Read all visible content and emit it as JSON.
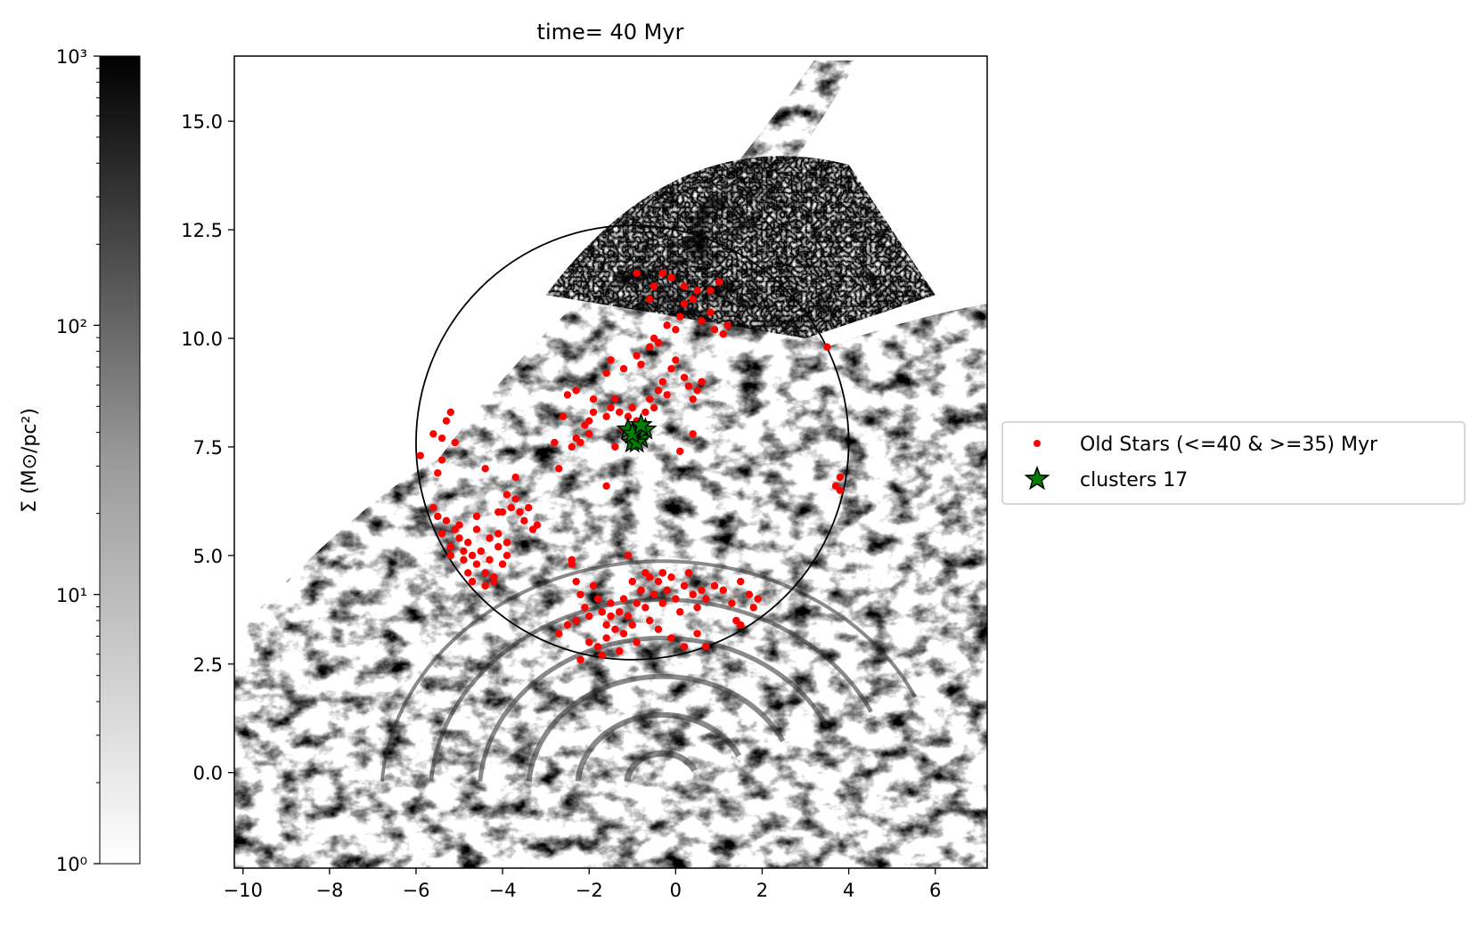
{
  "chart_data": {
    "type": "scatter",
    "title": "time= 40 Myr",
    "xlabel": "",
    "ylabel": "",
    "xlim": [
      -10.2,
      7.2
    ],
    "ylim": [
      -2.2,
      16.5
    ],
    "x_ticks": [
      -10,
      -8,
      -6,
      -4,
      -2,
      0,
      2,
      4,
      6
    ],
    "x_tick_labels": [
      "−10",
      "−8",
      "−6",
      "−4",
      "−2",
      "0",
      "2",
      "4",
      "6"
    ],
    "y_ticks": [
      0.0,
      2.5,
      5.0,
      7.5,
      10.0,
      12.5,
      15.0
    ],
    "y_tick_labels": [
      "0.0",
      "2.5",
      "5.0",
      "7.5",
      "10.0",
      "12.5",
      "15.0"
    ],
    "grid": false,
    "legend_placement": "right-outside",
    "background": "gas surface density map (greyscale, log scale)",
    "circle": {
      "center": [
        -1.0,
        7.6
      ],
      "radius": 5.0
    },
    "colorbar": {
      "label": "Σ (M⊙/pc²)",
      "scale": "log",
      "range": [
        1,
        1000
      ],
      "tick_labels": [
        "10⁰",
        "10¹",
        "10²",
        "10³"
      ],
      "colormap": "Greys"
    },
    "series": [
      {
        "name": "Old Stars (<=40 & >=35) Myr",
        "marker": "circle",
        "color": "#ff0000",
        "points": [
          [
            -5.9,
            7.3
          ],
          [
            -5.6,
            7.8
          ],
          [
            -5.4,
            7.7
          ],
          [
            -5.3,
            8.1
          ],
          [
            -5.2,
            8.3
          ],
          [
            -5.1,
            7.6
          ],
          [
            -5.4,
            7.2
          ],
          [
            -5.5,
            6.9
          ],
          [
            -5.6,
            6.1
          ],
          [
            -5.5,
            5.9
          ],
          [
            -5.3,
            5.8
          ],
          [
            -5.4,
            5.5
          ],
          [
            -5.1,
            5.6
          ],
          [
            -5.2,
            5.2
          ],
          [
            -5.0,
            5.4
          ],
          [
            -4.9,
            5.1
          ],
          [
            -4.8,
            5.3
          ],
          [
            -4.7,
            5.0
          ],
          [
            -4.6,
            4.8
          ],
          [
            -4.5,
            5.1
          ],
          [
            -4.4,
            4.6
          ],
          [
            -4.3,
            4.9
          ],
          [
            -4.2,
            4.5
          ],
          [
            -4.1,
            5.2
          ],
          [
            -4.0,
            4.8
          ],
          [
            -4.3,
            5.4
          ],
          [
            -4.6,
            5.6
          ],
          [
            -4.9,
            4.9
          ],
          [
            -5.0,
            5.7
          ],
          [
            -4.8,
            4.6
          ],
          [
            -4.4,
            4.3
          ],
          [
            -4.2,
            4.4
          ],
          [
            -4.7,
            4.4
          ],
          [
            -5.2,
            5.0
          ],
          [
            -4.1,
            5.5
          ],
          [
            -3.9,
            5.3
          ],
          [
            -4.0,
            6.0
          ],
          [
            -3.8,
            6.1
          ],
          [
            -3.7,
            6.3
          ],
          [
            -3.6,
            6.0
          ],
          [
            -3.5,
            5.8
          ],
          [
            -3.4,
            6.1
          ],
          [
            -3.3,
            5.6
          ],
          [
            -3.2,
            5.7
          ],
          [
            -3.9,
            6.4
          ],
          [
            -3.7,
            6.8
          ],
          [
            -4.1,
            6.0
          ],
          [
            -4.4,
            7.0
          ],
          [
            -3.9,
            5.0
          ],
          [
            -4.6,
            5.9
          ],
          [
            -2.5,
            8.7
          ],
          [
            -2.3,
            8.8
          ],
          [
            -2.6,
            8.2
          ],
          [
            -2.8,
            7.6
          ],
          [
            -2.4,
            7.5
          ],
          [
            -2.3,
            7.7
          ],
          [
            -2.2,
            7.6
          ],
          [
            -2.7,
            7.0
          ],
          [
            -2.0,
            7.8
          ],
          [
            -2.1,
            8.0
          ],
          [
            -1.9,
            8.3
          ],
          [
            -1.6,
            8.2
          ],
          [
            -1.5,
            8.4
          ],
          [
            -1.4,
            8.6
          ],
          [
            -1.3,
            8.3
          ],
          [
            -1.2,
            7.9
          ],
          [
            -1.1,
            8.2
          ],
          [
            -1.0,
            8.4
          ],
          [
            -0.9,
            8.1
          ],
          [
            -0.7,
            8.3
          ],
          [
            -0.6,
            8.6
          ],
          [
            -0.5,
            8.4
          ],
          [
            -0.4,
            8.8
          ],
          [
            -0.3,
            9.0
          ],
          [
            -0.2,
            8.7
          ],
          [
            -0.1,
            9.3
          ],
          [
            0.0,
            9.5
          ],
          [
            0.2,
            9.1
          ],
          [
            0.3,
            8.9
          ],
          [
            0.4,
            8.6
          ],
          [
            0.5,
            8.8
          ],
          [
            0.6,
            9.0
          ],
          [
            0.4,
            7.8
          ],
          [
            0.1,
            7.4
          ],
          [
            -1.2,
            9.3
          ],
          [
            -0.9,
            9.6
          ],
          [
            -0.8,
            9.4
          ],
          [
            -0.6,
            9.8
          ],
          [
            -0.5,
            10.0
          ],
          [
            -0.4,
            9.9
          ],
          [
            -0.2,
            10.3
          ],
          [
            0.0,
            10.2
          ],
          [
            0.1,
            10.5
          ],
          [
            0.2,
            10.8
          ],
          [
            0.4,
            10.9
          ],
          [
            0.6,
            10.4
          ],
          [
            0.8,
            10.6
          ],
          [
            0.9,
            10.2
          ],
          [
            1.1,
            10.1
          ],
          [
            1.2,
            10.3
          ],
          [
            0.5,
            11.1
          ],
          [
            0.2,
            11.2
          ],
          [
            -0.1,
            11.4
          ],
          [
            -0.3,
            11.5
          ],
          [
            -0.5,
            11.2
          ],
          [
            -0.9,
            11.5
          ],
          [
            -0.6,
            10.9
          ],
          [
            1.0,
            11.3
          ],
          [
            0.8,
            11.1
          ],
          [
            -1.6,
            9.2
          ],
          [
            -1.5,
            9.5
          ],
          [
            -1.9,
            8.6
          ],
          [
            -2.0,
            8.1
          ],
          [
            -1.6,
            6.6
          ],
          [
            -1.4,
            7.5
          ],
          [
            3.5,
            9.8
          ],
          [
            3.8,
            6.8
          ],
          [
            3.7,
            6.6
          ],
          [
            3.8,
            6.5
          ],
          [
            -2.4,
            4.8
          ],
          [
            -2.3,
            4.4
          ],
          [
            -2.2,
            4.1
          ],
          [
            -2.1,
            3.8
          ],
          [
            -2.0,
            3.6
          ],
          [
            -2.3,
            3.5
          ],
          [
            -2.5,
            3.4
          ],
          [
            -2.7,
            3.2
          ],
          [
            -1.9,
            4.3
          ],
          [
            -1.8,
            4.0
          ],
          [
            -1.7,
            3.7
          ],
          [
            -1.6,
            3.4
          ],
          [
            -1.5,
            3.6
          ],
          [
            -1.4,
            3.3
          ],
          [
            -1.3,
            3.7
          ],
          [
            -1.2,
            4.0
          ],
          [
            -1.1,
            3.6
          ],
          [
            -1.0,
            3.4
          ],
          [
            -0.9,
            3.9
          ],
          [
            -0.8,
            4.2
          ],
          [
            -0.7,
            3.8
          ],
          [
            -0.6,
            3.5
          ],
          [
            -0.5,
            4.1
          ],
          [
            -0.4,
            4.4
          ],
          [
            -0.3,
            3.9
          ],
          [
            -0.2,
            4.2
          ],
          [
            -0.1,
            4.5
          ],
          [
            0.0,
            4.0
          ],
          [
            0.1,
            3.7
          ],
          [
            0.2,
            4.3
          ],
          [
            0.3,
            4.6
          ],
          [
            0.4,
            4.1
          ],
          [
            0.5,
            3.8
          ],
          [
            0.6,
            4.2
          ],
          [
            0.7,
            4.0
          ],
          [
            0.9,
            4.3
          ],
          [
            1.1,
            4.2
          ],
          [
            1.3,
            3.9
          ],
          [
            1.5,
            4.4
          ],
          [
            1.7,
            4.1
          ],
          [
            1.9,
            4.0
          ],
          [
            1.8,
            3.8
          ],
          [
            1.4,
            3.5
          ],
          [
            1.5,
            3.4
          ],
          [
            -1.8,
            2.9
          ],
          [
            -1.6,
            3.1
          ],
          [
            -1.3,
            2.8
          ],
          [
            -1.2,
            3.2
          ],
          [
            -0.9,
            3.0
          ],
          [
            -0.4,
            3.3
          ],
          [
            -0.1,
            3.1
          ],
          [
            0.2,
            2.9
          ],
          [
            0.5,
            3.2
          ],
          [
            0.7,
            2.9
          ],
          [
            -2.0,
            3.0
          ],
          [
            -2.2,
            2.6
          ],
          [
            -1.7,
            2.7
          ],
          [
            -1.5,
            3.9
          ],
          [
            -0.6,
            4.5
          ],
          [
            -0.3,
            4.6
          ],
          [
            -0.7,
            4.6
          ],
          [
            -1.0,
            4.4
          ],
          [
            -1.1,
            5.0
          ],
          [
            -2.4,
            4.9
          ]
        ]
      },
      {
        "name": "clusters 17",
        "marker": "star",
        "color": "#008000",
        "edge_color": "#000000",
        "points": [
          [
            -1.0,
            7.6
          ],
          [
            -0.9,
            7.8
          ],
          [
            -0.8,
            7.7
          ],
          [
            -1.1,
            7.9
          ],
          [
            -0.7,
            7.9
          ],
          [
            -0.9,
            7.6
          ],
          [
            -1.0,
            7.8
          ],
          [
            -0.8,
            8.0
          ]
        ]
      }
    ]
  }
}
